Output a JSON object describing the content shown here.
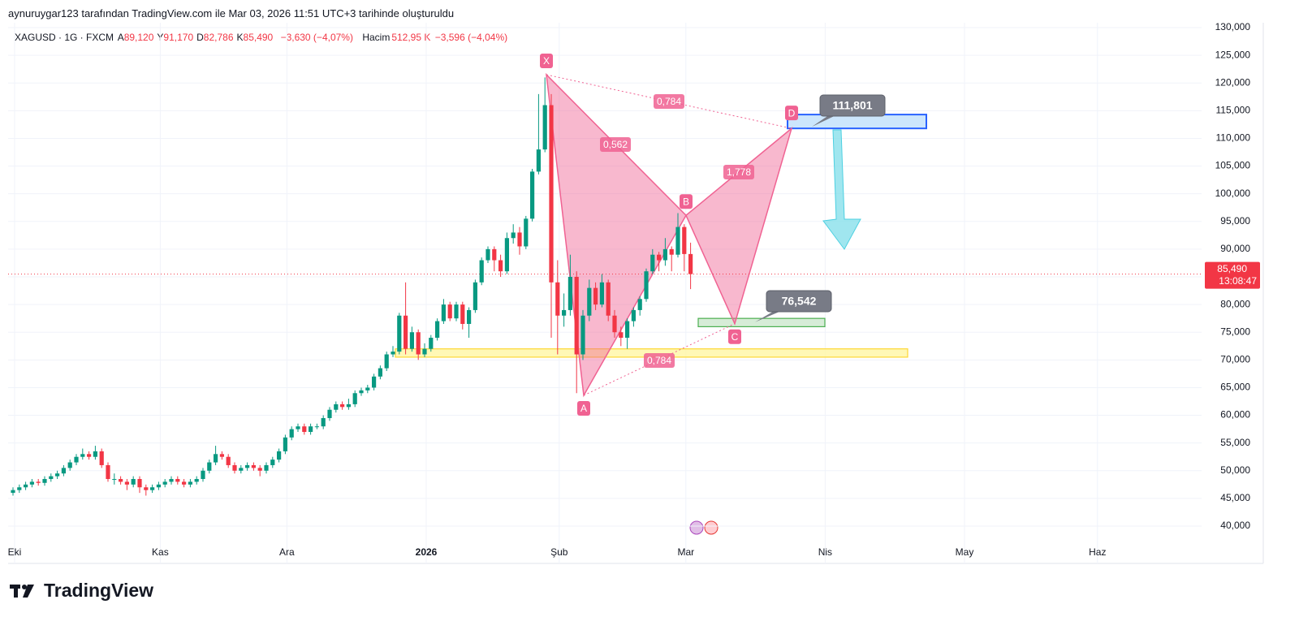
{
  "header": {
    "attribution": "aynuruygar123 tarafından TradingView.com ile Mar 03, 2026 11:51 UTC+3 tarihinde oluşturuldu",
    "symbol": "XAGUSD · 1G · FXCM",
    "ohlc": [
      {
        "key": "A",
        "value": "89,120"
      },
      {
        "key": "Y",
        "value": "91,170"
      },
      {
        "key": "D",
        "value": "82,786"
      },
      {
        "key": "K",
        "value": "85,490"
      }
    ],
    "change": "−3,630 (−4,07%)",
    "volume_key": "Hacim",
    "volume": "512,95 K",
    "volume_change": "−3,596 (−4,04%)"
  },
  "chart_data": {
    "type": "candlestick",
    "categories": [
      "Eki",
      null,
      null,
      null,
      null,
      null,
      null,
      null,
      null,
      null,
      null,
      null,
      null,
      null,
      null,
      null,
      null,
      null,
      null,
      null,
      null,
      null,
      null,
      "Kas",
      null,
      null,
      null,
      null,
      null,
      null,
      null,
      null,
      null,
      null,
      null,
      null,
      null,
      null,
      null,
      null,
      null,
      null,
      null,
      "Ara",
      null,
      null,
      null,
      null,
      null,
      null,
      null,
      null,
      null,
      null,
      null,
      null,
      null,
      null,
      null,
      null,
      null,
      null,
      null,
      null,
      null,
      "2026",
      null,
      null,
      null,
      null,
      null,
      null,
      null,
      null,
      null,
      null,
      null,
      null,
      null,
      null,
      null,
      null,
      null,
      null,
      null,
      null,
      "Şub",
      null,
      null,
      null,
      null,
      null,
      null,
      null,
      null,
      null,
      null,
      null,
      null,
      null,
      null,
      null,
      null,
      null,
      null,
      null,
      "Mar",
      null,
      null,
      null,
      null,
      null,
      null,
      null,
      null,
      null,
      null,
      null,
      null,
      null,
      null,
      null,
      null,
      null,
      null,
      null,
      null,
      null,
      "Nis",
      null,
      null,
      null,
      null,
      null,
      null,
      null,
      null,
      null,
      null,
      null,
      null,
      null,
      null,
      null,
      null,
      null,
      null,
      null,
      null,
      null,
      "May",
      null,
      null,
      null,
      null,
      null,
      null,
      null,
      null,
      null,
      null,
      null,
      null,
      null,
      null,
      null,
      null,
      null,
      null,
      null,
      null,
      "Haz",
      null,
      null,
      null,
      null,
      null,
      null,
      null,
      null,
      null,
      null,
      null,
      null,
      null,
      null,
      null
    ],
    "open": [
      46000,
      46500,
      47000,
      47500,
      48000,
      47800,
      48500,
      49000,
      49500,
      50500,
      51500,
      52500,
      53000,
      52500,
      53500,
      51000,
      48500,
      48500,
      48000,
      47500,
      48500,
      47000,
      46500,
      47000,
      47500,
      48000,
      48500,
      48000,
      47500,
      48000,
      48500,
      50000,
      51500,
      53000,
      52500,
      51000,
      50000,
      50500,
      51000,
      50500,
      50000,
      51000,
      52000,
      53500,
      56000,
      57500,
      58000,
      57000,
      58000,
      58000,
      59500,
      61000,
      62000,
      61500,
      62000,
      64000,
      64500,
      65000,
      67000,
      68500,
      71000,
      71500,
      78000,
      72000,
      75000,
      71000,
      72000,
      74000,
      77000,
      80000,
      77500,
      80000,
      76500,
      79000,
      84000,
      88000,
      90000,
      88000,
      86000,
      92000,
      93000,
      90500,
      95500,
      104000,
      108000,
      116000,
      84000,
      78000,
      79000,
      85000,
      71000,
      78000,
      83000,
      80000,
      84000,
      78000,
      75000,
      74000,
      77000,
      79000,
      81000,
      86000,
      89000,
      88000,
      90000,
      89000,
      94000,
      89120,
      null,
      null,
      null,
      null,
      null,
      null,
      null,
      null,
      null,
      null,
      null,
      null,
      null,
      null,
      null,
      null,
      null,
      null,
      null,
      null,
      null,
      null,
      null,
      null,
      null,
      null,
      null,
      null,
      null,
      null,
      null,
      null,
      null,
      null,
      null,
      null,
      null,
      null,
      null,
      null,
      null,
      null,
      null,
      null,
      null,
      null,
      null,
      null,
      null,
      null,
      null,
      null,
      null,
      null,
      null,
      null,
      null,
      null,
      null,
      null,
      null,
      null,
      null,
      null,
      null,
      null,
      null,
      null,
      null,
      null,
      null,
      null,
      null,
      null,
      null,
      null,
      null,
      null,
      null
    ],
    "high": [
      47000,
      47500,
      48000,
      48500,
      48500,
      49000,
      49500,
      50000,
      51000,
      52000,
      53000,
      54000,
      53500,
      54500,
      54000,
      51500,
      49500,
      49000,
      48500,
      49000,
      49000,
      47500,
      47500,
      48000,
      48500,
      49000,
      49000,
      48500,
      48500,
      49000,
      50500,
      52000,
      54500,
      53500,
      53000,
      51500,
      51000,
      51500,
      51500,
      51000,
      51500,
      52500,
      54000,
      56500,
      58000,
      58500,
      58500,
      58500,
      58500,
      60000,
      61500,
      62500,
      62500,
      63000,
      64500,
      65000,
      65500,
      67500,
      69000,
      71500,
      72500,
      78500,
      84000,
      76000,
      75500,
      73000,
      74500,
      77500,
      81000,
      80500,
      80500,
      80500,
      79500,
      84500,
      88500,
      90500,
      90500,
      89000,
      93000,
      94500,
      94000,
      96000,
      104500,
      118000,
      121000,
      118000,
      88000,
      82000,
      89000,
      86000,
      79000,
      84500,
      84000,
      85500,
      84500,
      79000,
      76000,
      77500,
      79500,
      81500,
      86500,
      90000,
      89500,
      92000,
      90500,
      96500,
      94500,
      91170,
      null,
      null,
      null,
      null,
      null,
      null,
      null,
      null,
      null,
      null,
      null,
      null,
      null,
      null,
      null,
      null,
      null,
      null,
      null,
      null,
      null,
      null,
      null,
      null,
      null,
      null,
      null,
      null,
      null,
      null,
      null,
      null,
      null,
      null,
      null,
      null,
      null,
      null,
      null,
      null,
      null,
      null,
      null,
      null,
      null,
      null,
      null,
      null,
      null,
      null,
      null,
      null,
      null,
      null,
      null,
      null,
      null,
      null,
      null,
      null,
      null,
      null,
      null,
      null,
      null,
      null,
      null,
      null,
      null,
      null,
      null,
      null,
      null,
      null,
      null,
      null,
      null,
      null,
      null
    ],
    "low": [
      45500,
      46000,
      46500,
      47000,
      47300,
      47300,
      48000,
      48500,
      49000,
      50000,
      51000,
      52000,
      52000,
      52000,
      50500,
      48000,
      47500,
      47500,
      46500,
      47000,
      46000,
      45500,
      46000,
      46500,
      47000,
      47500,
      47500,
      47000,
      47000,
      47500,
      48000,
      49500,
      51000,
      52000,
      50500,
      49500,
      49500,
      50000,
      50000,
      49000,
      49500,
      50500,
      51500,
      53000,
      55500,
      57000,
      56500,
      56500,
      57500,
      57500,
      59000,
      60500,
      61000,
      61000,
      61500,
      63500,
      64000,
      64500,
      66500,
      68000,
      70500,
      71000,
      71000,
      71500,
      70000,
      70500,
      71500,
      73500,
      76500,
      77000,
      77000,
      75500,
      74000,
      78500,
      83500,
      87500,
      86000,
      85000,
      85500,
      91000,
      89000,
      90000,
      95000,
      103500,
      107500,
      74000,
      71000,
      76000,
      78000,
      64000,
      70000,
      77000,
      79000,
      79500,
      77000,
      74000,
      72500,
      72000,
      76000,
      78000,
      80500,
      85500,
      86000,
      87000,
      86000,
      88500,
      86000,
      82786,
      null,
      null,
      null,
      null,
      null,
      null,
      null,
      null,
      null,
      null,
      null,
      null,
      null,
      null,
      null,
      null,
      null,
      null,
      null,
      null,
      null,
      null,
      null,
      null,
      null,
      null,
      null,
      null,
      null,
      null,
      null,
      null,
      null,
      null,
      null,
      null,
      null,
      null,
      null,
      null,
      null,
      null,
      null,
      null,
      null,
      null,
      null,
      null,
      null,
      null,
      null,
      null,
      null,
      null,
      null,
      null,
      null,
      null,
      null,
      null,
      null,
      null,
      null,
      null,
      null,
      null,
      null,
      null,
      null,
      null,
      null,
      null,
      null,
      null,
      null,
      null,
      null,
      null,
      null
    ],
    "close": [
      46500,
      47000,
      47500,
      48000,
      47800,
      48500,
      49000,
      49500,
      50500,
      51500,
      52500,
      53000,
      52500,
      53500,
      51000,
      48500,
      48500,
      48000,
      47500,
      48500,
      47000,
      46500,
      47000,
      47500,
      48000,
      48500,
      48000,
      47500,
      48000,
      48500,
      50000,
      51500,
      53000,
      52500,
      51000,
      50000,
      50500,
      51000,
      50500,
      50000,
      51000,
      52000,
      53500,
      56000,
      57500,
      58000,
      57000,
      58000,
      58000,
      59500,
      61000,
      62000,
      61500,
      62000,
      64000,
      64500,
      65000,
      67000,
      68500,
      71000,
      71500,
      78000,
      72000,
      75000,
      71000,
      72000,
      74000,
      77000,
      80000,
      77500,
      80000,
      76500,
      79000,
      84000,
      88000,
      90000,
      88000,
      86000,
      92000,
      93000,
      90500,
      95500,
      104000,
      108000,
      116000,
      84000,
      78000,
      79000,
      85000,
      71000,
      78000,
      83000,
      80000,
      84000,
      78000,
      75000,
      74000,
      77000,
      79000,
      81000,
      86000,
      89000,
      88000,
      90000,
      89000,
      94000,
      89120,
      85490,
      null,
      null,
      null,
      null,
      null,
      null,
      null,
      null,
      null,
      null,
      null,
      null,
      null,
      null,
      null,
      null,
      null,
      null,
      null,
      null,
      null,
      null,
      null,
      null,
      null,
      null,
      null,
      null,
      null,
      null,
      null,
      null,
      null,
      null,
      null,
      null,
      null,
      null,
      null,
      null,
      null,
      null,
      null,
      null,
      null,
      null,
      null,
      null,
      null,
      null,
      null,
      null,
      null,
      null,
      null,
      null,
      null,
      null,
      null,
      null,
      null,
      null,
      null,
      null,
      null,
      null,
      null,
      null,
      null,
      null,
      null,
      null,
      null,
      null,
      null,
      null,
      null,
      null,
      null
    ],
    "up_color": "#089981",
    "down_color": "#f23645",
    "ylim": [
      40000,
      130000
    ],
    "yticks": [
      {
        "value": 40000,
        "label": "40,000"
      },
      {
        "value": 45000,
        "label": "45,000"
      },
      {
        "value": 50000,
        "label": "50,000"
      },
      {
        "value": 55000,
        "label": "55,000"
      },
      {
        "value": 60000,
        "label": "60,000"
      },
      {
        "value": 65000,
        "label": "65,000"
      },
      {
        "value": 70000,
        "label": "70,000"
      },
      {
        "value": 75000,
        "label": "75,000"
      },
      {
        "value": 80000,
        "label": "80,000"
      },
      {
        "value": 85000,
        "label": "85,000"
      },
      {
        "value": 90000,
        "label": "90,000"
      },
      {
        "value": 95000,
        "label": "95,000"
      },
      {
        "value": 100000,
        "label": "100,000"
      },
      {
        "value": 105000,
        "label": "105,000"
      },
      {
        "value": 110000,
        "label": "110,000"
      },
      {
        "value": 115000,
        "label": "115,000"
      },
      {
        "value": 120000,
        "label": "120,000"
      },
      {
        "value": 125000,
        "label": "125,000"
      },
      {
        "value": 130000,
        "label": "130,000"
      }
    ],
    "grid": true,
    "last_label": "85,490",
    "countdown": "13:08:47",
    "zones": [
      {
        "low": 70500,
        "high": 72000,
        "color": "#fff59d"
      },
      {
        "low": 76000,
        "high": 77500,
        "color": "#c8e6c9"
      },
      {
        "low": 111800,
        "high": 114300,
        "color": "#bbdefb"
      }
    ],
    "pattern": {
      "color": "#f06292",
      "points": [
        {
          "label": "X",
          "price": 121500
        },
        {
          "label": "A",
          "price": 63600
        },
        {
          "label": "B",
          "price": 96100
        },
        {
          "label": "C",
          "price": 76542,
          "price_label": "76,542"
        },
        {
          "label": "D",
          "price": 111801,
          "price_label": "111,801"
        }
      ],
      "ratios": [
        "0,784",
        "0,562",
        "1,778",
        "0,784"
      ]
    }
  },
  "footer": {
    "logo": "TradingView"
  }
}
